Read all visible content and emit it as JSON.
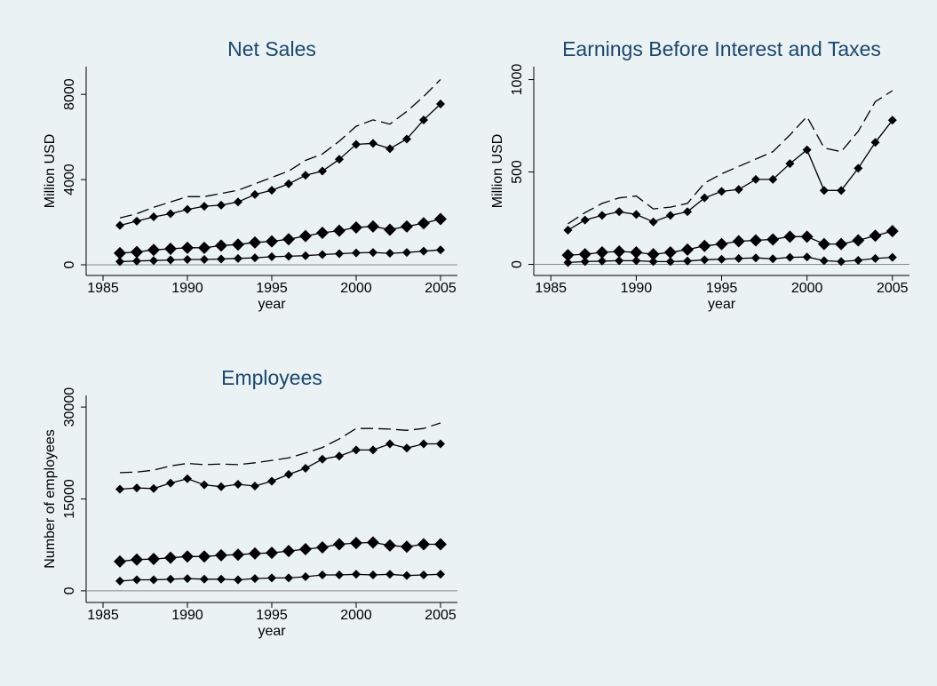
{
  "chart_data": [
    {
      "type": "line",
      "title": "Net Sales",
      "xlabel": "year",
      "ylabel": "Million USD",
      "x": [
        1986,
        1987,
        1988,
        1989,
        1990,
        1991,
        1992,
        1993,
        1994,
        1995,
        1996,
        1997,
        1998,
        1999,
        2000,
        2001,
        2002,
        2003,
        2004,
        2005
      ],
      "xlim": [
        1984,
        2006
      ],
      "xticks": [
        1985,
        1990,
        1995,
        2000,
        2005
      ],
      "ylim": [
        -500,
        9300
      ],
      "yticks": [
        0,
        4000,
        8000
      ],
      "yline": 0,
      "series": [
        {
          "color": "#000000",
          "line_style": "dashed",
          "marker": "none",
          "values": [
            2200,
            2400,
            2700,
            2950,
            3200,
            3200,
            3350,
            3500,
            3800,
            4100,
            4400,
            4900,
            5200,
            5800,
            6500,
            6800,
            6600,
            7200,
            7900,
            8700
          ]
        },
        {
          "color": "#000000",
          "line_style": "solid",
          "marker": "diamond",
          "marker_size": 5,
          "values": [
            1850,
            2050,
            2250,
            2400,
            2600,
            2750,
            2800,
            2950,
            3300,
            3500,
            3800,
            4200,
            4400,
            4950,
            5650,
            5700,
            5450,
            5900,
            6800,
            7550
          ]
        },
        {
          "color": "#000000",
          "line_style": "solid",
          "marker": "diamond",
          "marker_size": 7,
          "values": [
            550,
            600,
            700,
            750,
            800,
            800,
            900,
            950,
            1050,
            1100,
            1200,
            1350,
            1500,
            1600,
            1750,
            1800,
            1650,
            1800,
            1950,
            2150
          ]
        },
        {
          "color": "#000000",
          "line_style": "solid",
          "marker": "diamond",
          "marker_size": 5,
          "values": [
            150,
            180,
            200,
            230,
            250,
            250,
            270,
            300,
            330,
            380,
            400,
            430,
            480,
            520,
            560,
            580,
            540,
            580,
            640,
            700
          ]
        }
      ]
    },
    {
      "type": "line",
      "title": "Earnings Before Interest and Taxes",
      "xlabel": "year",
      "ylabel": "Million USD",
      "x": [
        1986,
        1987,
        1988,
        1989,
        1990,
        1991,
        1992,
        1993,
        1994,
        1995,
        1996,
        1997,
        1998,
        1999,
        2000,
        2001,
        2002,
        2003,
        2004,
        2005
      ],
      "xlim": [
        1984,
        2006
      ],
      "xticks": [
        1985,
        1990,
        1995,
        2000,
        2005
      ],
      "ylim": [
        -60,
        1070
      ],
      "yticks": [
        0,
        500,
        1000
      ],
      "yline": 0,
      "series": [
        {
          "color": "#000000",
          "line_style": "dashed",
          "marker": "none",
          "values": [
            220,
            280,
            330,
            360,
            370,
            300,
            310,
            330,
            440,
            490,
            530,
            570,
            610,
            700,
            800,
            630,
            610,
            720,
            880,
            940
          ]
        },
        {
          "color": "#000000",
          "line_style": "solid",
          "marker": "diamond",
          "marker_size": 5,
          "values": [
            185,
            240,
            265,
            285,
            270,
            230,
            265,
            285,
            360,
            395,
            405,
            460,
            460,
            545,
            620,
            400,
            400,
            520,
            660,
            780
          ]
        },
        {
          "color": "#000000",
          "line_style": "solid",
          "marker": "diamond",
          "marker_size": 7,
          "values": [
            50,
            55,
            65,
            70,
            65,
            55,
            65,
            80,
            100,
            110,
            125,
            130,
            135,
            150,
            150,
            110,
            110,
            130,
            155,
            180
          ]
        },
        {
          "color": "#000000",
          "line_style": "solid",
          "marker": "diamond",
          "marker_size": 5,
          "values": [
            10,
            15,
            18,
            20,
            20,
            15,
            15,
            18,
            25,
            28,
            32,
            35,
            30,
            38,
            40,
            20,
            15,
            22,
            32,
            38
          ]
        }
      ]
    },
    {
      "type": "line",
      "title": "Employees",
      "xlabel": "year",
      "ylabel": "Number of employees",
      "x": [
        1986,
        1987,
        1988,
        1989,
        1990,
        1991,
        1992,
        1993,
        1994,
        1995,
        1996,
        1997,
        1998,
        1999,
        2000,
        2001,
        2002,
        2003,
        2004,
        2005
      ],
      "xlim": [
        1984,
        2006
      ],
      "xticks": [
        1985,
        1990,
        1995,
        2000,
        2005
      ],
      "ylim": [
        -1900,
        31900
      ],
      "yticks": [
        0,
        15000,
        30000
      ],
      "yline": 0,
      "series": [
        {
          "color": "#000000",
          "line_style": "dashed",
          "marker": "none",
          "values": [
            19300,
            19400,
            19700,
            20400,
            20800,
            20600,
            20700,
            20600,
            20900,
            21300,
            21700,
            22500,
            23400,
            24800,
            26500,
            26500,
            26400,
            26200,
            26500,
            27400
          ]
        },
        {
          "color": "#000000",
          "line_style": "solid",
          "marker": "diamond",
          "marker_size": 5,
          "values": [
            16600,
            16800,
            16700,
            17600,
            18300,
            17300,
            17000,
            17400,
            17100,
            17900,
            19000,
            20000,
            21500,
            22000,
            23000,
            23000,
            24000,
            23300,
            24000,
            24000
          ]
        },
        {
          "color": "#000000",
          "line_style": "solid",
          "marker": "diamond",
          "marker_size": 7,
          "values": [
            4800,
            5100,
            5200,
            5400,
            5600,
            5600,
            5800,
            5900,
            6100,
            6200,
            6500,
            6800,
            7100,
            7600,
            7800,
            7900,
            7400,
            7200,
            7600,
            7600
          ]
        },
        {
          "color": "#000000",
          "line_style": "solid",
          "marker": "diamond",
          "marker_size": 5,
          "values": [
            1600,
            1800,
            1800,
            1900,
            2000,
            1900,
            1900,
            1800,
            2000,
            2100,
            2100,
            2300,
            2600,
            2600,
            2700,
            2600,
            2700,
            2500,
            2600,
            2700
          ]
        }
      ]
    }
  ]
}
